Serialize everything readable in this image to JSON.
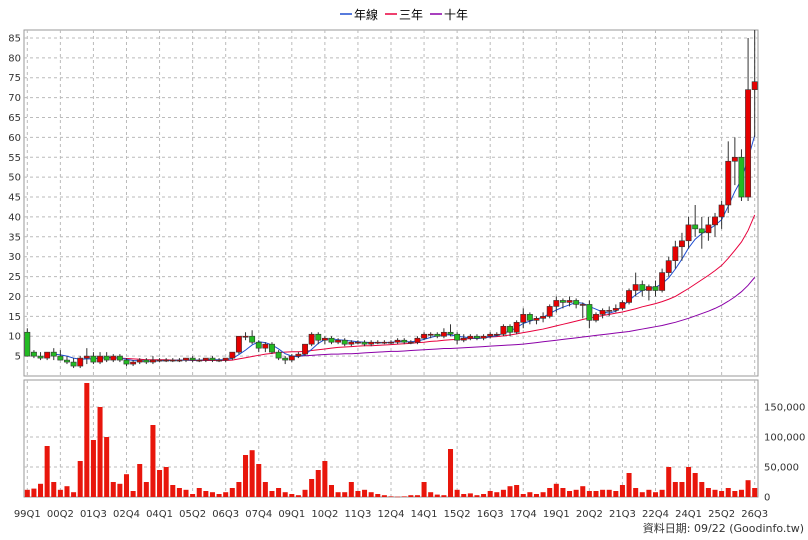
{
  "chart_data": {
    "type": "candlestick",
    "legend": {
      "placement": "top-center",
      "items": [
        {
          "label": "年線",
          "color": "#1f4fd1"
        },
        {
          "label": "三年",
          "color": "#e8003d"
        },
        {
          "label": "十年",
          "color": "#8b00a8"
        }
      ]
    },
    "price_axis": {
      "ylim": [
        0,
        87
      ],
      "ticks": [
        5,
        10,
        15,
        20,
        25,
        30,
        35,
        40,
        45,
        50,
        55,
        60,
        65,
        70,
        75,
        80,
        85
      ]
    },
    "volume_axis": {
      "ylim": [
        0,
        195000
      ],
      "ticks": [
        0,
        50000,
        100000,
        150000
      ],
      "tick_labels": [
        "0",
        "50,000",
        "100,000",
        "150,000"
      ]
    },
    "x_labels": [
      "99Q1",
      "00Q2",
      "01Q3",
      "02Q4",
      "04Q1",
      "05Q2",
      "06Q3",
      "07Q4",
      "09Q1",
      "10Q2",
      "11Q3",
      "12Q4",
      "14Q1",
      "15Q2",
      "16Q3",
      "17Q4",
      "19Q1",
      "20Q2",
      "21Q3",
      "22Q4",
      "24Q1",
      "25Q2",
      "26Q3"
    ],
    "x_label_pos": [
      0,
      5,
      10,
      15,
      20,
      25,
      30,
      35,
      40,
      45,
      50,
      55,
      60,
      65,
      70,
      75,
      80,
      85,
      90,
      95,
      100,
      105,
      110
    ],
    "n_quarters": 111,
    "ohlc": [
      [
        11,
        12,
        5,
        5
      ],
      [
        6,
        6.5,
        4.5,
        5
      ],
      [
        5,
        6,
        4,
        4.5
      ],
      [
        4.5,
        6,
        4,
        6
      ],
      [
        6,
        7,
        4,
        5
      ],
      [
        5,
        6.5,
        4,
        4
      ],
      [
        4,
        5,
        3,
        3.5
      ],
      [
        3.5,
        4.5,
        2,
        2.5
      ],
      [
        2.5,
        5,
        2,
        4.5
      ],
      [
        4.5,
        7,
        3,
        5
      ],
      [
        5,
        6,
        3,
        3.5
      ],
      [
        3.5,
        6,
        3,
        5
      ],
      [
        5,
        6,
        3.5,
        4
      ],
      [
        4,
        5.5,
        3.5,
        5
      ],
      [
        5,
        5.5,
        3.5,
        4
      ],
      [
        4,
        4.5,
        2.5,
        3
      ],
      [
        3,
        4,
        2.5,
        3.5
      ],
      [
        3.5,
        4.5,
        3,
        4
      ],
      [
        4,
        4.5,
        3,
        3.5
      ],
      [
        3.5,
        5,
        3,
        4
      ],
      [
        4,
        4.5,
        3.5,
        4
      ],
      [
        4,
        4.5,
        3.5,
        4
      ],
      [
        4,
        4.5,
        3.5,
        4
      ],
      [
        4,
        4.5,
        3.5,
        4
      ],
      [
        4,
        4.5,
        3.5,
        4.5
      ],
      [
        4.5,
        5,
        3.5,
        4
      ],
      [
        4,
        4.5,
        3.5,
        4
      ],
      [
        4,
        4.5,
        3.5,
        4.5
      ],
      [
        4.5,
        5,
        3.5,
        4
      ],
      [
        4,
        4.5,
        3.5,
        4
      ],
      [
        4,
        4.5,
        3.5,
        4.5
      ],
      [
        4.5,
        6,
        4,
        6
      ],
      [
        6,
        10,
        5.5,
        10
      ],
      [
        10,
        11,
        9,
        10
      ],
      [
        10,
        11.5,
        8,
        8.5
      ],
      [
        8.5,
        9,
        6,
        7
      ],
      [
        7,
        8.5,
        6,
        8
      ],
      [
        8,
        8.5,
        5.5,
        6
      ],
      [
        6,
        6.5,
        4,
        4.5
      ],
      [
        4.5,
        5,
        3,
        4
      ],
      [
        4,
        5.5,
        3.5,
        5
      ],
      [
        5,
        6,
        4.5,
        5.5
      ],
      [
        5.5,
        8,
        5,
        8
      ],
      [
        8,
        11,
        7.5,
        10.5
      ],
      [
        10.5,
        11,
        8,
        9
      ],
      [
        9,
        10,
        8,
        9.5
      ],
      [
        9.5,
        10,
        8,
        8.5
      ],
      [
        8.5,
        9.5,
        8,
        9
      ],
      [
        9,
        9.5,
        7.5,
        8
      ],
      [
        8,
        9,
        7.5,
        8.5
      ],
      [
        8.5,
        9,
        8,
        8.5
      ],
      [
        8.5,
        9,
        7.5,
        8
      ],
      [
        8,
        9,
        7.5,
        8.5
      ],
      [
        8.5,
        9,
        8,
        8.5
      ],
      [
        8.5,
        9,
        8,
        8.5
      ],
      [
        8.5,
        9,
        8,
        8.5
      ],
      [
        8.5,
        9.5,
        8,
        9
      ],
      [
        9,
        9.5,
        8,
        8.5
      ],
      [
        8.5,
        9,
        8,
        8.5
      ],
      [
        8.5,
        10,
        8,
        9.5
      ],
      [
        9.5,
        11,
        9,
        10.5
      ],
      [
        10.5,
        11,
        9.5,
        10.5
      ],
      [
        10.5,
        11,
        9.5,
        10
      ],
      [
        10,
        12,
        9.5,
        11
      ],
      [
        11,
        13,
        10,
        10.5
      ],
      [
        10.5,
        11,
        8,
        9
      ],
      [
        9,
        10.5,
        8.5,
        9.5
      ],
      [
        9.5,
        10.5,
        9,
        10
      ],
      [
        10,
        10.5,
        9,
        9.5
      ],
      [
        9.5,
        10.5,
        9,
        10
      ],
      [
        10,
        11,
        9.5,
        10.5
      ],
      [
        10.5,
        11,
        10,
        10.5
      ],
      [
        10.5,
        13,
        10,
        12.5
      ],
      [
        12.5,
        13,
        10,
        11
      ],
      [
        11,
        14,
        10.5,
        13.5
      ],
      [
        13.5,
        17,
        12,
        15.5
      ],
      [
        15.5,
        16,
        13,
        14
      ],
      [
        14,
        15,
        13,
        14.5
      ],
      [
        14.5,
        16,
        13.5,
        15
      ],
      [
        15,
        18,
        14.5,
        17.5
      ],
      [
        17.5,
        20,
        16,
        19
      ],
      [
        19,
        19.5,
        17,
        18.5
      ],
      [
        18.5,
        20,
        17.5,
        19
      ],
      [
        19,
        19.5,
        17,
        18
      ],
      [
        18,
        18.5,
        14.5,
        18
      ],
      [
        18,
        19,
        12,
        14
      ],
      [
        14,
        16,
        13.5,
        15.5
      ],
      [
        15.5,
        17,
        14.5,
        16.5
      ],
      [
        16.5,
        17.5,
        15,
        16.5
      ],
      [
        16.5,
        18,
        16,
        17
      ],
      [
        17,
        19,
        16.5,
        18.5
      ],
      [
        18.5,
        22,
        18,
        21.5
      ],
      [
        21.5,
        26,
        20,
        23
      ],
      [
        23,
        24,
        20,
        21.5
      ],
      [
        21.5,
        23,
        19,
        22.5
      ],
      [
        22.5,
        24,
        20,
        21.5
      ],
      [
        21.5,
        27,
        21,
        26
      ],
      [
        26,
        30,
        25,
        29
      ],
      [
        29,
        34,
        27,
        32.5
      ],
      [
        32.5,
        36,
        29,
        34
      ],
      [
        34,
        40,
        32,
        38
      ],
      [
        38,
        43,
        35,
        37
      ],
      [
        37,
        40,
        32,
        36
      ],
      [
        36,
        40,
        34,
        38
      ],
      [
        38,
        41,
        35,
        40
      ],
      [
        40,
        44,
        37,
        43
      ],
      [
        43,
        59,
        41,
        54
      ],
      [
        54,
        60,
        48,
        55
      ],
      [
        55,
        57,
        44,
        45
      ],
      [
        45,
        85,
        44,
        72
      ],
      [
        72,
        87,
        60,
        74
      ]
    ],
    "volume": [
      12000,
      14000,
      22000,
      85000,
      25000,
      12000,
      18000,
      8000,
      60000,
      190000,
      95000,
      150000,
      100000,
      25000,
      22000,
      38000,
      10000,
      55000,
      25000,
      120000,
      45000,
      50000,
      20000,
      15000,
      12000,
      5000,
      15000,
      10000,
      8000,
      5000,
      8000,
      15000,
      25000,
      70000,
      78000,
      55000,
      25000,
      10000,
      15000,
      8000,
      5000,
      3000,
      12000,
      30000,
      45000,
      60000,
      20000,
      8000,
      8000,
      25000,
      10000,
      12000,
      8000,
      5000,
      3000,
      1000,
      500,
      1000,
      3000,
      3000,
      25000,
      8000,
      4000,
      3000,
      80000,
      12000,
      5000,
      6000,
      3000,
      5000,
      10000,
      8000,
      12000,
      18000,
      20000,
      5000,
      8000,
      5000,
      8000,
      15000,
      22000,
      15000,
      10000,
      12000,
      18000,
      10000,
      10000,
      12000,
      12000,
      10000,
      20000,
      40000,
      15000,
      8000,
      12000,
      8000,
      12000,
      50000,
      25000,
      25000,
      50000,
      40000,
      25000,
      15000,
      12000,
      10000,
      15000,
      10000,
      12000,
      28000,
      15000
    ],
    "ma_1y": [
      null,
      null,
      null,
      null,
      5.5,
      5.3,
      5.0,
      4.5,
      4.2,
      4.3,
      4.3,
      4.5,
      4.6,
      4.6,
      4.5,
      4.2,
      3.9,
      3.8,
      3.7,
      3.7,
      3.8,
      3.9,
      3.9,
      4.0,
      4.0,
      4.0,
      4.0,
      4.1,
      4.1,
      4.1,
      4.1,
      4.4,
      5.4,
      6.5,
      7.8,
      8.6,
      8.4,
      7.8,
      6.8,
      5.6,
      5.0,
      4.8,
      5.4,
      6.7,
      8.2,
      9.2,
      9.4,
      9.1,
      9.0,
      8.8,
      8.6,
      8.5,
      8.4,
      8.4,
      8.4,
      8.5,
      8.6,
      8.6,
      8.6,
      8.8,
      9.2,
      9.7,
      10.1,
      10.4,
      10.3,
      10.0,
      9.8,
      9.6,
      9.4,
      9.6,
      9.9,
      10.1,
      10.8,
      11.3,
      12.2,
      13.2,
      13.8,
      14.3,
      14.8,
      15.7,
      16.6,
      17.3,
      17.9,
      18.5,
      18.3,
      17.5,
      16.8,
      16.1,
      15.8,
      16.3,
      17.5,
      19.0,
      20.4,
      21.5,
      22.0,
      22.3,
      23.2,
      24.7,
      26.9,
      29.4,
      32.2,
      34.4,
      35.8,
      36.8,
      37.9,
      39.3,
      42.7,
      46.4,
      49.4,
      54.6,
      60.5
    ],
    "ma_3y": [
      null,
      null,
      null,
      null,
      null,
      null,
      null,
      null,
      null,
      null,
      null,
      null,
      4.7,
      4.6,
      4.5,
      4.4,
      4.3,
      4.2,
      4.1,
      4.1,
      4.1,
      4.1,
      4.0,
      4.0,
      4.0,
      3.9,
      3.9,
      3.9,
      3.9,
      3.9,
      3.9,
      4.0,
      4.3,
      4.6,
      4.9,
      5.2,
      5.5,
      5.7,
      5.9,
      6.0,
      6.1,
      6.1,
      6.2,
      6.4,
      6.6,
      6.8,
      7.0,
      7.2,
      7.3,
      7.4,
      7.5,
      7.6,
      7.6,
      7.7,
      7.8,
      7.9,
      8.0,
      8.1,
      8.2,
      8.4,
      8.5,
      8.7,
      8.8,
      9.0,
      9.1,
      9.2,
      9.3,
      9.4,
      9.5,
      9.6,
      9.8,
      9.9,
      10.1,
      10.3,
      10.6,
      10.9,
      11.2,
      11.5,
      11.8,
      12.2,
      12.6,
      13.0,
      13.4,
      13.8,
      14.2,
      14.6,
      14.9,
      15.2,
      15.5,
      15.8,
      16.1,
      16.5,
      16.9,
      17.4,
      17.8,
      18.2,
      18.7,
      19.3,
      20.0,
      21.0,
      22.0,
      23.1,
      24.2,
      25.3,
      26.5,
      27.8,
      29.6,
      31.6,
      33.7,
      36.6,
      40.5
    ],
    "ma_10y": [
      null,
      null,
      null,
      null,
      null,
      null,
      null,
      null,
      null,
      null,
      null,
      null,
      null,
      null,
      null,
      null,
      null,
      null,
      null,
      null,
      null,
      null,
      null,
      null,
      null,
      null,
      null,
      null,
      null,
      null,
      null,
      null,
      null,
      null,
      null,
      null,
      null,
      null,
      null,
      null,
      5.0,
      5.0,
      5.1,
      5.2,
      5.3,
      5.4,
      5.5,
      5.5,
      5.6,
      5.6,
      5.7,
      5.8,
      5.9,
      6.0,
      6.1,
      6.2,
      6.2,
      6.3,
      6.4,
      6.5,
      6.6,
      6.7,
      6.8,
      6.9,
      6.9,
      7.0,
      7.1,
      7.2,
      7.3,
      7.4,
      7.5,
      7.6,
      7.7,
      7.8,
      7.9,
      8.0,
      8.2,
      8.4,
      8.6,
      8.8,
      9.0,
      9.2,
      9.4,
      9.6,
      9.8,
      10.0,
      10.2,
      10.4,
      10.6,
      10.8,
      11.0,
      11.2,
      11.5,
      11.8,
      12.1,
      12.4,
      12.7,
      13.1,
      13.5,
      14.0,
      14.5,
      15.1,
      15.7,
      16.3,
      17.0,
      17.8,
      18.8,
      19.9,
      21.2,
      22.8,
      24.8
    ]
  },
  "credit": "資料日期: 09/22 (Goodinfo.tw)"
}
